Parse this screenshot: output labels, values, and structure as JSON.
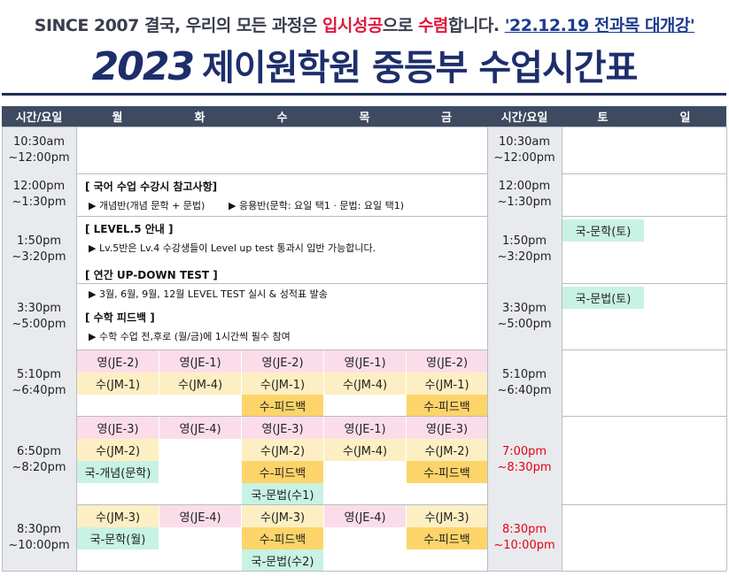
{
  "header": {
    "tagline": [
      "SINCE 2007  결국, 우리의 모든 과정은 ",
      "입시성공",
      "으로 ",
      "수렴",
      "합니다. ",
      "'22.12.19 전과목 대개강'"
    ],
    "year": "2023",
    "title": "제이원학원 중등부 수업시간표"
  },
  "table": {
    "headers": [
      "시간/요일",
      "월",
      "화",
      "수",
      "목",
      "금",
      "시간/요일",
      "토",
      "일"
    ],
    "rows": [
      {
        "time_left": [
          "10:30am",
          "~12:00pm"
        ],
        "time_right": [
          "10:30am",
          "~12:00pm"
        ]
      },
      {
        "time_left": [
          "12:00pm",
          "~1:30pm"
        ],
        "time_right": [
          "12:00pm",
          "~1:30pm"
        ]
      },
      {
        "time_left": [
          "1:50pm",
          "~3:20pm"
        ],
        "time_right": [
          "1:50pm",
          "~3:20pm"
        ],
        "sat": [
          "국-문학(토)"
        ]
      },
      {
        "time_left": [
          "3:30pm",
          "~5:00pm"
        ],
        "time_right": [
          "3:30pm",
          "~5:00pm"
        ],
        "sat": [
          "국-문법(토)"
        ]
      },
      {
        "time_left": [
          "5:10pm",
          "~6:40pm"
        ],
        "time_right": [
          "5:10pm",
          "~6:40pm"
        ],
        "days": [
          [
            "영(JE-2)",
            "수(JM-1)",
            null
          ],
          [
            "영(JE-1)",
            "수(JM-4)",
            null
          ],
          [
            "영(JE-2)",
            "수(JM-1)",
            "수-피드백"
          ],
          [
            "영(JE-1)",
            "수(JM-4)",
            null
          ],
          [
            "영(JE-2)",
            "수(JM-1)",
            "수-피드백"
          ]
        ]
      },
      {
        "time_left": [
          "6:50pm",
          "~8:20pm"
        ],
        "time_right": [
          "7:00pm",
          "~8:30pm"
        ],
        "time_right_color": "#e60012",
        "days": [
          [
            "영(JE-3)",
            "수(JM-2)",
            "국-개념(문학)",
            null
          ],
          [
            "영(JE-4)",
            null,
            null,
            null
          ],
          [
            "영(JE-3)",
            "수(JM-2)",
            "수-피드백",
            "국-문법(수1)"
          ],
          [
            "영(JE-1)",
            "수(JM-4)",
            null,
            null
          ],
          [
            "영(JE-3)",
            "수(JM-2)",
            "수-피드백",
            null
          ]
        ]
      },
      {
        "time_left": [
          "8:30pm",
          "~10:00pm"
        ],
        "time_right": [
          "8:30pm",
          "~10:00pm"
        ],
        "time_right_color": "#e60012",
        "days": [
          [
            "수(JM-3)",
            "국-문학(월)",
            null
          ],
          [
            "영(JE-4)",
            null,
            null
          ],
          [
            "수(JM-3)",
            "수-피드백",
            "국-문법(수2)"
          ],
          [
            "영(JE-4)",
            null,
            null
          ],
          [
            "수(JM-3)",
            "수-피드백",
            null
          ]
        ]
      }
    ]
  },
  "notice": [
    {
      "heading": "[ 국어 수업 수강시 참고사항]",
      "lines": [
        "▶ 개념반(개념 문학 + 문법)",
        "▶ 응용반(문학: 요일 택1 · 문법: 요일 택1)"
      ]
    },
    {
      "heading": "[ LEVEL.5 안내 ]",
      "lines": [
        "▶ Lv.5반은 Lv.4 수강생들이 Level up test 통과시 입반 가능합니다."
      ]
    },
    {
      "heading": "[ 연간 UP-DOWN TEST ]",
      "lines": [
        "▶ 3월, 6월, 9월, 12월 LEVEL TEST 실시 & 성적표 발송"
      ]
    },
    {
      "heading": "[ 수학 피드백 ]",
      "lines": [
        "▶ 수학 수업 전,후로 (월/금)에 1시간씩 필수 참여"
      ]
    }
  ]
}
